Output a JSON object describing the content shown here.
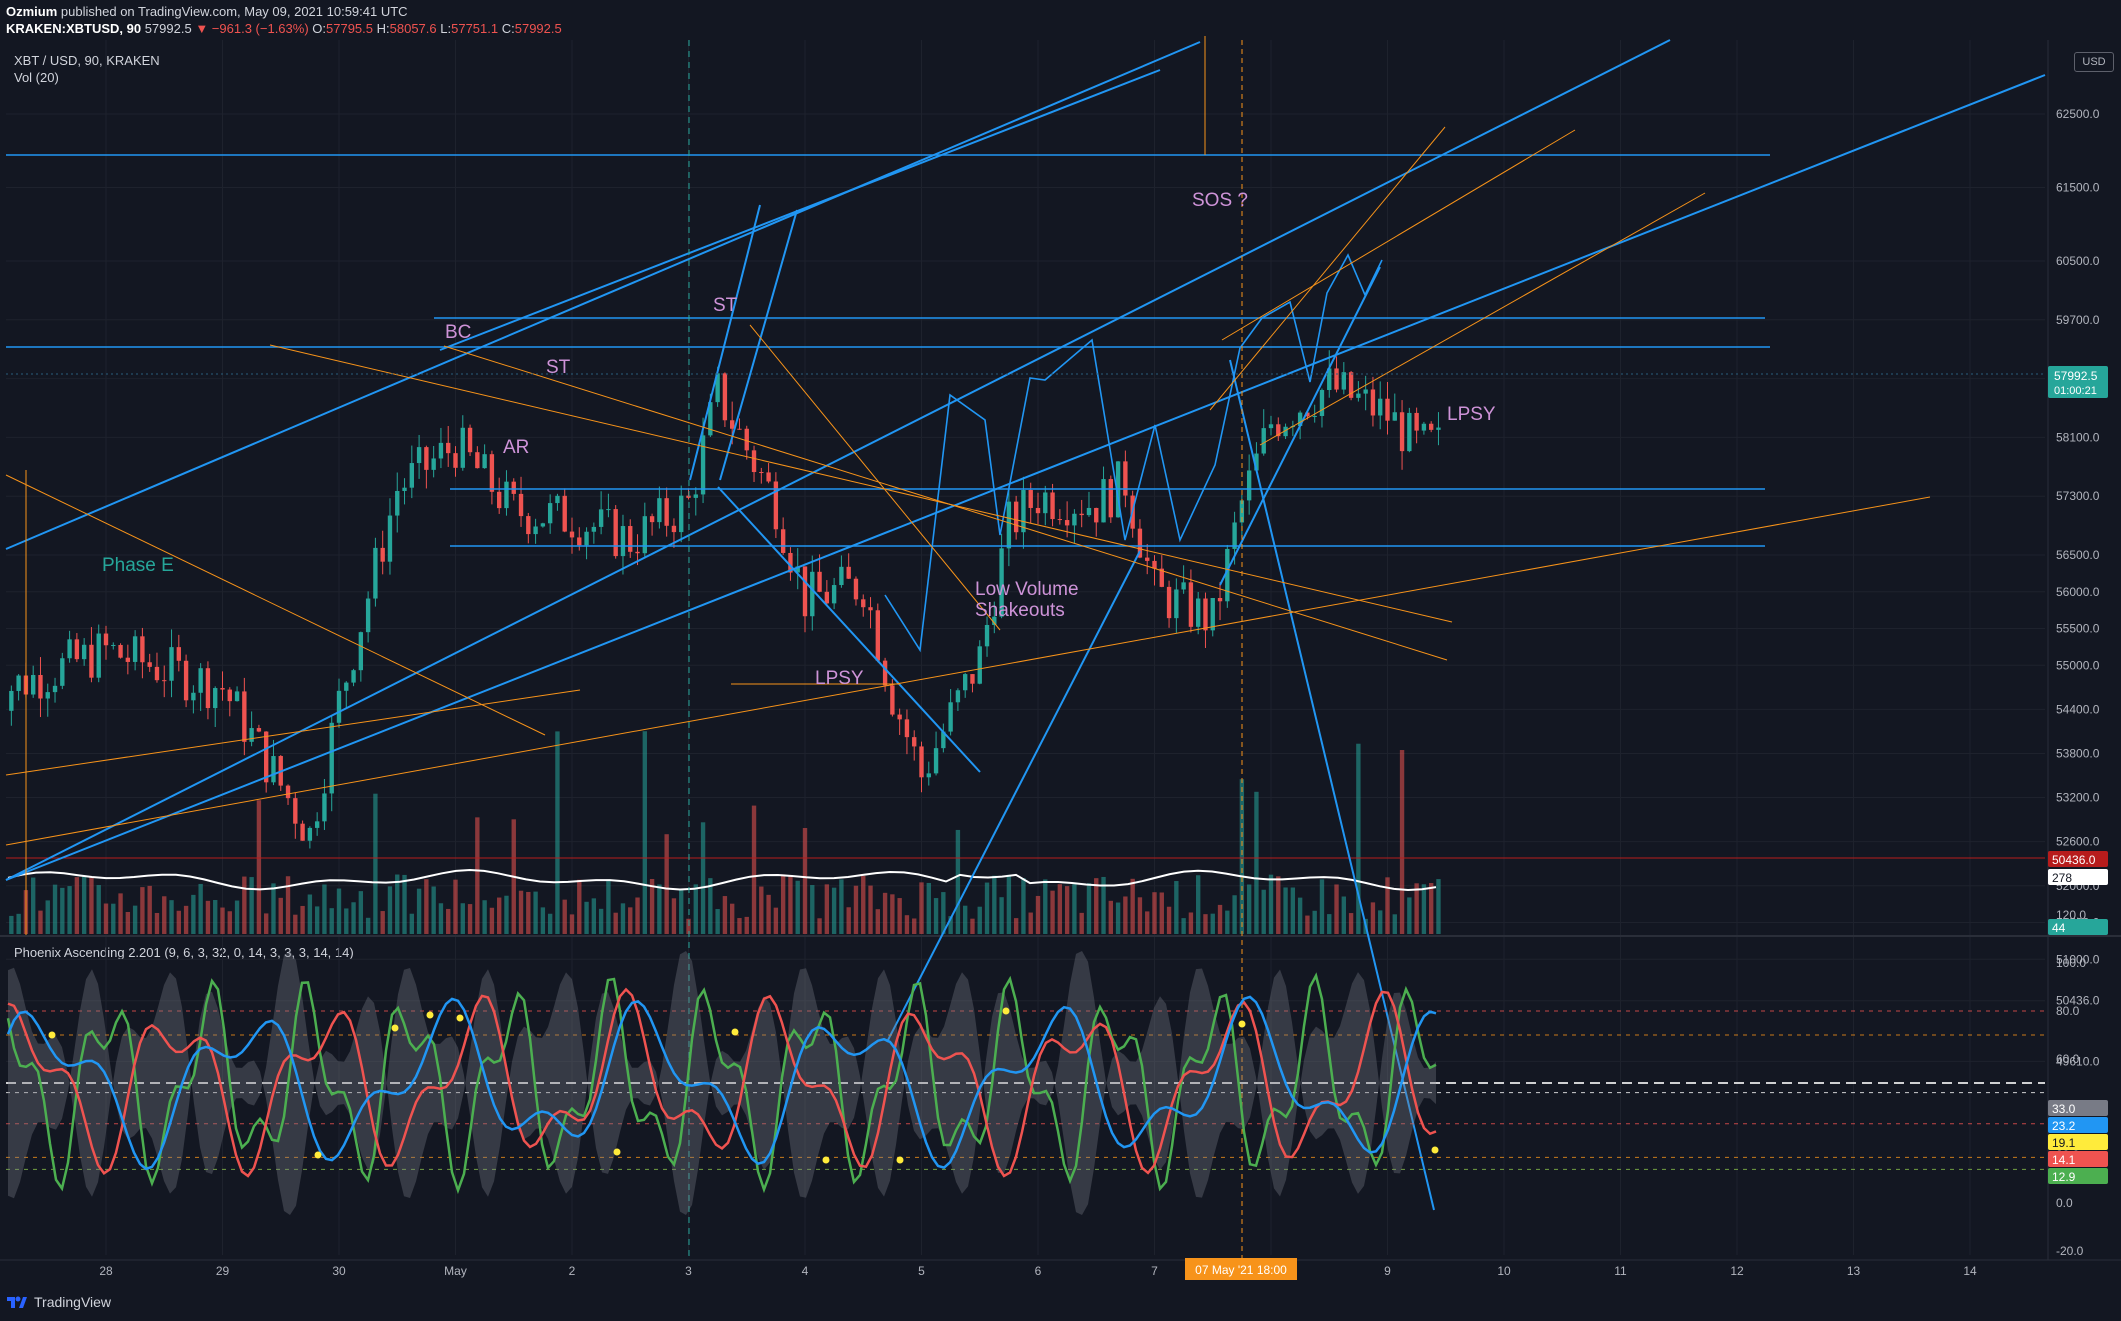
{
  "header": {
    "author": "Ozmium",
    "published": "published on TradingView.com, May 09, 2021 10:59:41 UTC",
    "symbol": "KRAKEN:XBTUSD, 90",
    "last": "57992.5",
    "change": "▼ −961.3 (−1.63%)",
    "o": "O:",
    "o_val": "57795.5",
    "h": "H:",
    "h_val": "58057.6",
    "l": "L:",
    "l_val": "57751.1",
    "c": "C:",
    "c_val": "57992.5"
  },
  "pane": {
    "legend": "XBT / USD, 90, KRAKEN",
    "vol": "Vol (20)",
    "indicator": "Phoenix Ascending 2.201 (9, 6, 3, 32, 0, 14, 3, 3, 3, 14, 14)",
    "currency": "USD"
  },
  "price_badges": {
    "last_price": "57992.5",
    "countdown": "01:00:21",
    "vol_level": "50436.0",
    "vol_ma": "278",
    "vol_now": "44"
  },
  "indicator_badges": [
    "33.0",
    "23.2",
    "19.1",
    "14.1",
    "12.9"
  ],
  "cursor_label": "07 May '21   18:00",
  "annotations": [
    {
      "text": "BC",
      "color": "#ce93d8"
    },
    {
      "text": "ST",
      "color": "#ce93d8"
    },
    {
      "text": "AR",
      "color": "#ce93d8"
    },
    {
      "text": "ST",
      "color": "#ce93d8"
    },
    {
      "text": "Phase E",
      "color": "#26a69a"
    },
    {
      "text": "SOS ?",
      "color": "#ce93d8"
    },
    {
      "text": "LPSY",
      "color": "#ce93d8"
    },
    {
      "text": "LPSY",
      "color": "#ce93d8"
    },
    {
      "text": "Low Volume",
      "color": "#ce93d8"
    },
    {
      "text": "Shakeouts",
      "color": "#ce93d8"
    }
  ],
  "footer": {
    "brand": "TradingView"
  },
  "colors": {
    "up": "#26a69a",
    "down": "#ef5350",
    "trend": "#2196f3",
    "fib": "#f7931a",
    "bg": "#131722"
  },
  "chart_data": [
    {
      "type": "candlestick",
      "title": "XBT / USD, 90, KRAKEN",
      "x_tick_labels": [
        "28",
        "29",
        "30",
        "May",
        "2",
        "3",
        "4",
        "5",
        "6",
        "7",
        "9",
        "10",
        "11",
        "12",
        "13",
        "14"
      ],
      "y_tick_labels": [
        "62500.0",
        "61500.0",
        "60500.0",
        "59700.0",
        "58900.0",
        "58100.0",
        "57300.0",
        "56500.0",
        "56000.0",
        "55500.0",
        "55000.0",
        "54400.0",
        "53800.0",
        "53200.0",
        "52600.0",
        "52000.0",
        "51500.0",
        "51000.0",
        "50436.0",
        "49610.0"
      ],
      "ylim": [
        49610,
        63000
      ],
      "price_path": [
        {
          "x": "27 Apr",
          "y": 54600
        },
        {
          "x": "28 Apr",
          "y": 55200
        },
        {
          "x": "29 Apr",
          "y": 54700
        },
        {
          "x": "29 Apr 18:00",
          "y": 52700
        },
        {
          "x": "30 Apr",
          "y": 54500
        },
        {
          "x": "30 Apr 12:00",
          "y": 57400
        },
        {
          "x": "1 May",
          "y": 58000
        },
        {
          "x": "1 May 12:00",
          "y": 57100
        },
        {
          "x": "2 May",
          "y": 57000
        },
        {
          "x": "2 May 12:00",
          "y": 56700
        },
        {
          "x": "3 May",
          "y": 57200
        },
        {
          "x": "3 May 06:00",
          "y": 58700
        },
        {
          "x": "3 May 18:00",
          "y": 57200
        },
        {
          "x": "4 May",
          "y": 55900
        },
        {
          "x": "4 May 12:00",
          "y": 56100
        },
        {
          "x": "4 May 18:00",
          "y": 54600
        },
        {
          "x": "5 May",
          "y": 53500
        },
        {
          "x": "5 May 12:00",
          "y": 55100
        },
        {
          "x": "5 May 18:00",
          "y": 56900
        },
        {
          "x": "6 May",
          "y": 57300
        },
        {
          "x": "6 May 12:00",
          "y": 57200
        },
        {
          "x": "6 May 18:00",
          "y": 57500
        },
        {
          "x": "7 May",
          "y": 56000
        },
        {
          "x": "7 May 12:00",
          "y": 55600
        },
        {
          "x": "7 May 18:00",
          "y": 57200
        },
        {
          "x": "8 May",
          "y": 58300
        },
        {
          "x": "8 May 12:00",
          "y": 58800
        },
        {
          "x": "9 May",
          "y": 58400
        },
        {
          "x": "9 May 06:00",
          "y": 57992.5
        }
      ],
      "horizontal_levels": [
        61900,
        58900,
        58300,
        56200,
        55100
      ],
      "volume": {
        "name": "Vol (20)",
        "last": 44,
        "ma": 278
      }
    },
    {
      "type": "line",
      "title": "Phoenix Ascending 2.201 (9, 6, 3, 32, 0, 14, 3, 3, 3, 14, 14)",
      "y_tick_labels": [
        "120.0",
        "100.0",
        "80.0",
        "60.0",
        "40.0",
        "20.0",
        "0.0",
        "-20.0"
      ],
      "ylim": [
        -25,
        125
      ],
      "reference_lines": [
        80,
        70,
        50,
        46,
        33,
        19,
        14
      ],
      "last_values": [
        33.0,
        23.2,
        19.1,
        14.1,
        12.9
      ]
    }
  ]
}
